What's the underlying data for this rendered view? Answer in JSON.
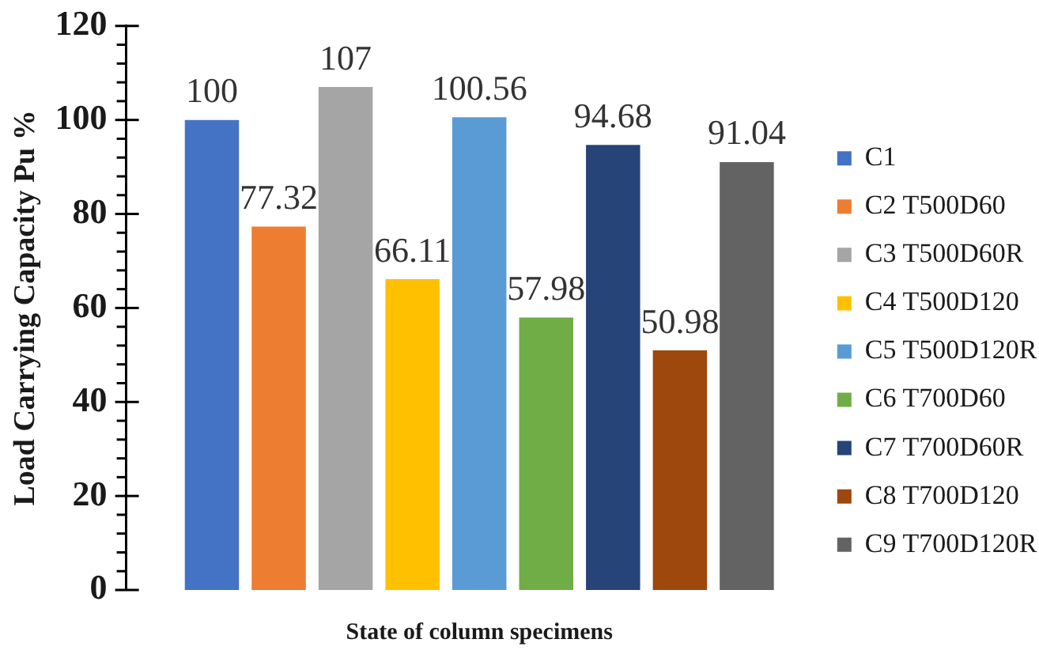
{
  "chart_data": {
    "type": "bar",
    "xlabel": "State of column specimens",
    "ylabel": "Load Carrying Capacity Pu %",
    "categories": [
      null
    ],
    "series": [
      {
        "name": "C1",
        "color": "#4472c4",
        "values": [
          100
        ]
      },
      {
        "name": "C2 T500D60",
        "color": "#ed7d31",
        "values": [
          77.32
        ]
      },
      {
        "name": "C3 T500D60R",
        "color": "#a5a5a5",
        "values": [
          107
        ]
      },
      {
        "name": "C4 T500D120",
        "color": "#ffc000",
        "values": [
          66.11
        ]
      },
      {
        "name": "C5 T500D120R",
        "color": "#5b9bd5",
        "values": [
          100.56
        ]
      },
      {
        "name": "C6 T700D60",
        "color": "#70ad47",
        "values": [
          57.98
        ]
      },
      {
        "name": "C7 T700D60R",
        "color": "#264478",
        "values": [
          94.68
        ]
      },
      {
        "name": "C8 T700D120",
        "color": "#9e480e",
        "values": [
          50.98
        ]
      },
      {
        "name": "C9 T700D120R",
        "color": "#636363",
        "values": [
          91.04
        ]
      }
    ],
    "ylim": [
      0,
      120
    ],
    "yticks": [
      0,
      {
        "value": 4,
        "label": null
      },
      {
        "value": 8,
        "label": null
      },
      {
        "value": 12,
        "label": null
      },
      {
        "value": 16,
        "label": null
      },
      20,
      {
        "value": 24,
        "label": null
      },
      {
        "value": 28,
        "label": null
      },
      {
        "value": 32,
        "label": null
      },
      {
        "value": 36,
        "label": null
      },
      40,
      {
        "value": 44,
        "label": null
      },
      {
        "value": 48,
        "label": null
      },
      {
        "value": 52,
        "label": null
      },
      {
        "value": 56,
        "label": null
      },
      60,
      {
        "value": 64,
        "label": null
      },
      {
        "value": 68,
        "label": null
      },
      {
        "value": 72,
        "label": null
      },
      {
        "value": 76,
        "label": null
      },
      80,
      {
        "value": 84,
        "label": null
      },
      {
        "value": 88,
        "label": null
      },
      {
        "value": 92,
        "label": null
      },
      {
        "value": 96,
        "label": null
      },
      100,
      {
        "value": 104,
        "label": null
      },
      {
        "value": 108,
        "label": null
      },
      {
        "value": 112,
        "label": null
      },
      {
        "value": 116,
        "label": null
      },
      120
    ],
    "data_labels": true,
    "legend": "right"
  }
}
